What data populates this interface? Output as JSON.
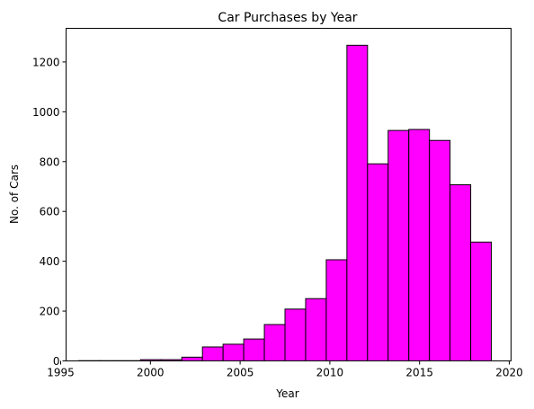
{
  "chart_data": {
    "type": "bar",
    "title": "Car Purchases by Year",
    "xlabel": "Year",
    "ylabel": "No. of Cars",
    "xlim": [
      1995.3,
      2020.1
    ],
    "ylim": [
      0,
      1335
    ],
    "grid": false,
    "bar_color": "#ff00ff",
    "edge_color": "#000000",
    "bins": [
      {
        "start": 1996.0,
        "end": 1997.15,
        "value": 1
      },
      {
        "start": 1997.15,
        "end": 1998.3,
        "value": 1
      },
      {
        "start": 1998.3,
        "end": 1999.45,
        "value": 1
      },
      {
        "start": 1999.45,
        "end": 2000.6,
        "value": 5
      },
      {
        "start": 2000.6,
        "end": 2001.75,
        "value": 5
      },
      {
        "start": 2001.75,
        "end": 2002.9,
        "value": 15
      },
      {
        "start": 2002.9,
        "end": 2004.05,
        "value": 56
      },
      {
        "start": 2004.05,
        "end": 2005.2,
        "value": 67
      },
      {
        "start": 2005.2,
        "end": 2006.35,
        "value": 88
      },
      {
        "start": 2006.35,
        "end": 2007.5,
        "value": 146
      },
      {
        "start": 2007.5,
        "end": 2008.65,
        "value": 208
      },
      {
        "start": 2008.65,
        "end": 2009.8,
        "value": 250
      },
      {
        "start": 2009.8,
        "end": 2010.95,
        "value": 406
      },
      {
        "start": 2010.95,
        "end": 2012.1,
        "value": 1267
      },
      {
        "start": 2012.1,
        "end": 2013.25,
        "value": 791
      },
      {
        "start": 2013.25,
        "end": 2014.4,
        "value": 925
      },
      {
        "start": 2014.4,
        "end": 2015.55,
        "value": 929
      },
      {
        "start": 2015.55,
        "end": 2016.7,
        "value": 885
      },
      {
        "start": 2016.7,
        "end": 2017.85,
        "value": 707
      },
      {
        "start": 2017.85,
        "end": 2019.0,
        "value": 477
      }
    ],
    "x_ticks": [
      1995,
      2000,
      2005,
      2010,
      2015,
      2020
    ],
    "x_tick_labels": [
      "1995",
      "2000",
      "2005",
      "2010",
      "2015",
      "2020"
    ],
    "y_ticks": [
      0,
      200,
      400,
      600,
      800,
      1000,
      1200
    ],
    "y_tick_labels": [
      "0",
      "200",
      "400",
      "600",
      "800",
      "1000",
      "1200"
    ]
  }
}
